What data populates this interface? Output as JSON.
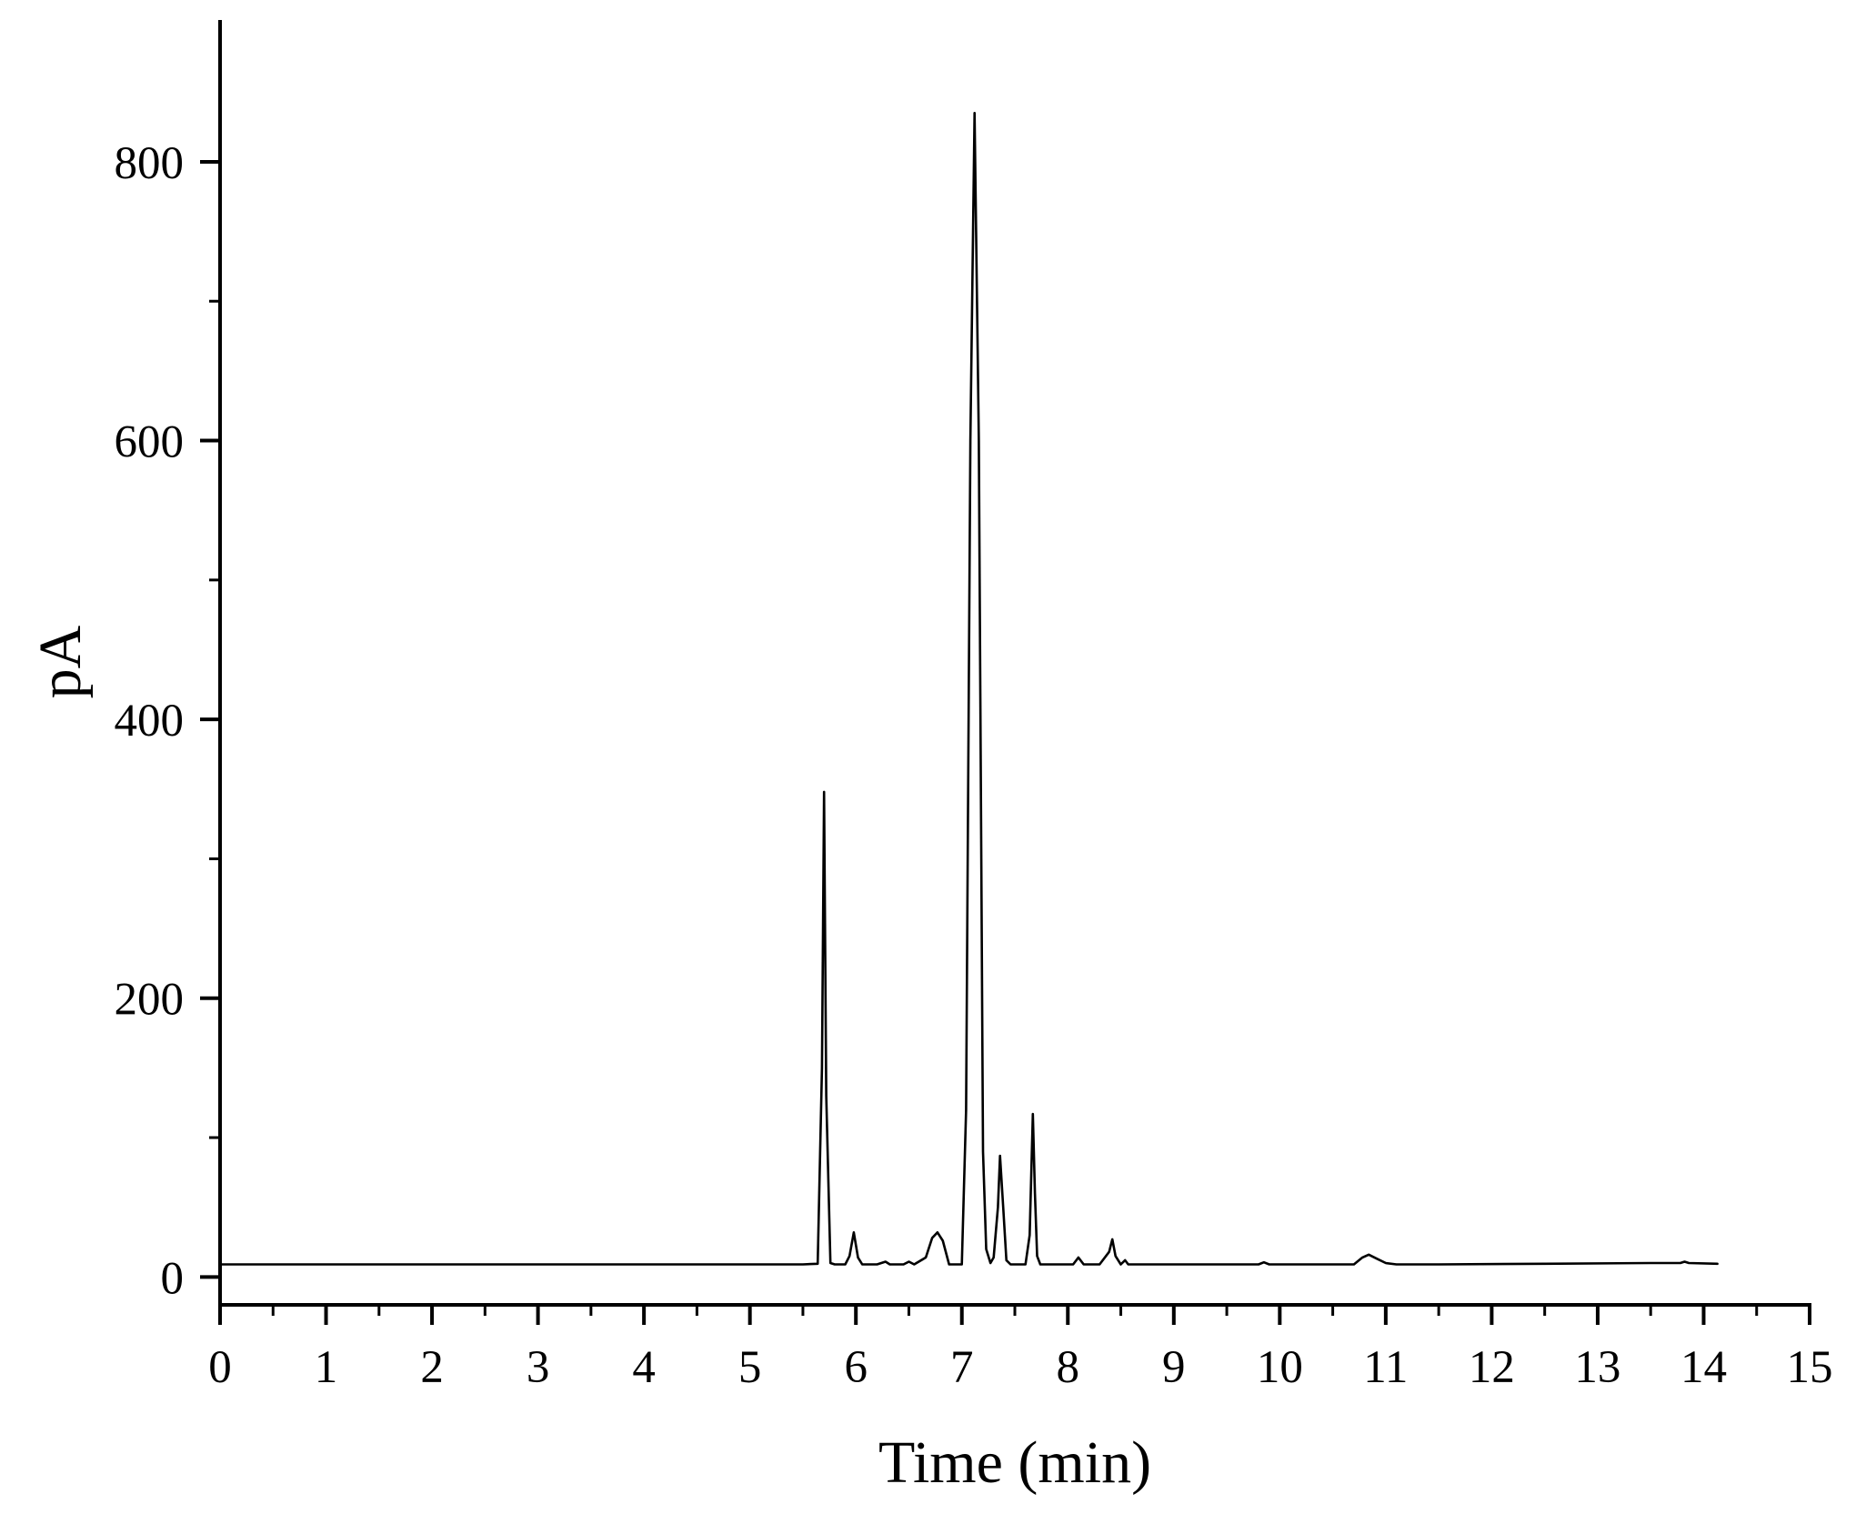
{
  "chart_data": {
    "type": "line",
    "title": "",
    "xlabel": "Time (min)",
    "ylabel": "pA",
    "xlim": [
      0,
      15
    ],
    "ylim": [
      -20,
      900
    ],
    "x_ticks": [
      0,
      1,
      2,
      3,
      4,
      5,
      6,
      7,
      8,
      9,
      10,
      11,
      12,
      13,
      14,
      15
    ],
    "x_tick_labels": [
      "0",
      "1",
      "2",
      "3",
      "4",
      "5",
      "6",
      "7",
      "8",
      "9",
      "10",
      "11",
      "12",
      "13",
      "14",
      "15"
    ],
    "x_minor_ticks": [
      0.5,
      1.5,
      2.5,
      3.5,
      4.5,
      5.5,
      6.5,
      7.5,
      8.5,
      9.5,
      10.5,
      11.5,
      12.5,
      13.5,
      14.5
    ],
    "y_ticks": [
      0,
      200,
      400,
      600,
      800
    ],
    "y_tick_labels": [
      "0",
      "200",
      "400",
      "600",
      "800"
    ],
    "y_minor_ticks": [
      100,
      300,
      500,
      700
    ],
    "grid": false,
    "legend": "none",
    "line_color": "#000000",
    "series": [
      {
        "x": [
          0,
          5.0,
          5.5,
          5.64,
          5.68,
          5.7,
          5.72,
          5.76,
          5.8,
          5.9,
          5.94,
          5.98,
          6.02,
          6.06,
          6.2,
          6.28,
          6.32,
          6.45,
          6.5,
          6.55,
          6.66,
          6.72,
          6.77,
          6.82,
          6.88,
          7.0,
          7.04,
          7.08,
          7.12,
          7.16,
          7.2,
          7.23,
          7.27,
          7.3,
          7.34,
          7.36,
          7.39,
          7.42,
          7.46,
          7.52,
          7.6,
          7.64,
          7.67,
          7.69,
          7.71,
          7.74,
          7.8,
          8.05,
          8.1,
          8.15,
          8.3,
          8.39,
          8.42,
          8.45,
          8.5,
          8.54,
          8.57,
          8.62,
          9.0,
          9.8,
          9.85,
          9.9,
          10.0,
          10.7,
          10.78,
          10.84,
          10.92,
          11.0,
          11.1,
          11.5,
          12.5,
          13.5,
          13.78,
          13.82,
          13.86,
          14.13
        ],
        "values": [
          9,
          9,
          9,
          9.5,
          150,
          348,
          130,
          10,
          9,
          9,
          15,
          32,
          14,
          9,
          9,
          11,
          9,
          9,
          11,
          9,
          14,
          28,
          32,
          26,
          9,
          9,
          120,
          600,
          835,
          600,
          90,
          20,
          10,
          14,
          50,
          87,
          50,
          12,
          9,
          9,
          9,
          30,
          117,
          60,
          15,
          9,
          9,
          9,
          14,
          9,
          9,
          18,
          27,
          15,
          9,
          12,
          9,
          9,
          9,
          9,
          10.5,
          9,
          9,
          9,
          14,
          16,
          13,
          10,
          9,
          9,
          9.5,
          10,
          10,
          11,
          10,
          9.5
        ]
      }
    ]
  }
}
